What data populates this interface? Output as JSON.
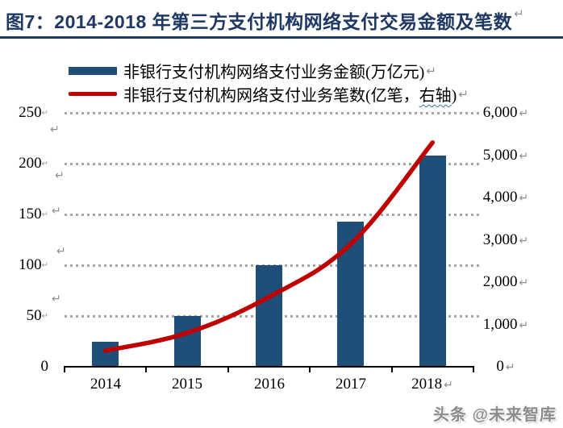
{
  "title": {
    "text": "图7：2014-2018 年第三方支付机构网络支付交易金额及笔数"
  },
  "marks": {
    "return": "↵"
  },
  "legend": {
    "items": [
      {
        "label": "非银行支付机构网络支付业务金额(万亿元)",
        "color": "#1F4E79",
        "shape": "bar"
      },
      {
        "label_prefix": "非银行支付机构网络支付业务笔数(亿笔，",
        "label_emphasis": "右轴",
        "label_suffix": ")",
        "color": "#C00000",
        "shape": "line"
      }
    ]
  },
  "chart_data": {
    "type": "combo-bar-line",
    "title": "图7：2014-2018 年第三方支付机构网络支付交易金额及笔数",
    "categories": [
      "2014",
      "2015",
      "2016",
      "2017",
      "2018"
    ],
    "series": [
      {
        "name": "非银行支付机构网络支付业务金额(万亿元)",
        "type": "bar",
        "axis": "left",
        "color": "#1F4E79",
        "values": [
          25,
          50,
          100,
          143,
          208
        ]
      },
      {
        "name": "非银行支付机构网络支付业务笔数(亿笔，右轴)",
        "type": "line",
        "axis": "right",
        "color": "#C00000",
        "values": [
          380,
          800,
          1650,
          2900,
          5300
        ]
      }
    ],
    "left_axis": {
      "min": 0,
      "max": 250,
      "ticks": [
        250,
        200,
        150,
        100,
        50,
        0
      ],
      "tick_labels": [
        "250",
        "200",
        "150",
        "100",
        "50",
        "0"
      ]
    },
    "right_axis": {
      "min": 0,
      "max": 6000,
      "ticks": [
        6000,
        5000,
        4000,
        3000,
        2000,
        1000,
        0
      ],
      "tick_labels": [
        "6,000",
        "5,000",
        "4,000",
        "3,000",
        "2,000",
        "1,000",
        "0"
      ]
    },
    "gridlines": {
      "orientation": "horizontal",
      "style": "dotted",
      "color": "#A6A6A6"
    },
    "legend_position": "top-left"
  },
  "watermark": {
    "text": "头条 @未来智库"
  }
}
